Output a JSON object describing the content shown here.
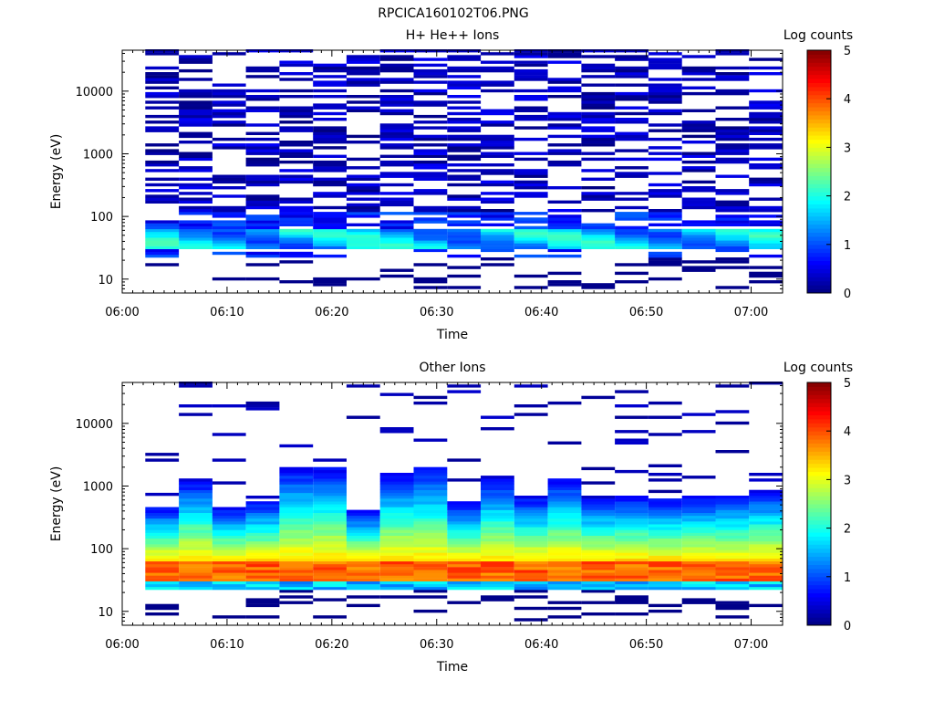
{
  "title": "RPCICA160102T06.PNG",
  "chart_data": [
    {
      "type": "heatmap",
      "title": "H+ He++ Ions",
      "xlabel": "Time",
      "ylabel": "Energy (eV)",
      "x_ticks": [
        "06:00",
        "06:10",
        "06:20",
        "06:30",
        "06:40",
        "06:50",
        "07:00"
      ],
      "x_range_minutes": [
        0,
        63
      ],
      "y_scale": "log",
      "y_ticks": [
        "10",
        "100",
        "1000",
        "10000"
      ],
      "ylim": [
        6,
        45000
      ],
      "colorbar": {
        "label": "Log counts",
        "min": 0,
        "max": 5,
        "ticks": [
          "0",
          "1",
          "2",
          "3",
          "4",
          "5"
        ]
      },
      "time_columns_start_min": [
        2.2,
        5.4,
        8.6,
        11.8,
        15.0,
        18.2,
        21.4,
        24.6,
        27.8,
        31.0,
        34.2,
        37.4,
        40.6,
        43.8,
        47.0,
        50.2,
        53.4,
        56.6,
        59.8
      ],
      "column_width_min": 3.2,
      "energy_bands_eV": {
        "low_gaps": [
          [
            8,
            12
          ],
          [
            12,
            14
          ],
          [
            14,
            18
          ],
          [
            18,
            24
          ]
        ],
        "core_band": [
          30,
          60
        ],
        "core_log_counts": [
          1.8,
          2.0,
          1.6,
          1.2
        ]
      },
      "notes": "sparse single-count pixels (log counts ~0-0.5) fill 100 eV - 40 keV; peak ~1.5-2.2 log counts at 30-60 eV"
    },
    {
      "type": "heatmap",
      "title": "Other Ions",
      "xlabel": "Time",
      "ylabel": "Energy (eV)",
      "x_ticks": [
        "06:00",
        "06:10",
        "06:20",
        "06:30",
        "06:40",
        "06:50",
        "07:00"
      ],
      "x_range_minutes": [
        0,
        63
      ],
      "y_scale": "log",
      "y_ticks": [
        "10",
        "100",
        "1000",
        "10000"
      ],
      "ylim": [
        6,
        45000
      ],
      "colorbar": {
        "label": "Log counts",
        "min": 0,
        "max": 5,
        "ticks": [
          "0",
          "1",
          "2",
          "3",
          "4",
          "5"
        ]
      },
      "time_columns_start_min": [
        2.2,
        5.4,
        8.6,
        11.8,
        15.0,
        18.2,
        21.4,
        24.6,
        27.8,
        31.0,
        34.2,
        37.4,
        40.6,
        43.8,
        47.0,
        50.2,
        53.4,
        56.6,
        59.8
      ],
      "column_width_min": 3.2,
      "upper_cutoff_eV": [
        450,
        1200,
        420,
        560,
        1950,
        1900,
        380,
        1600,
        1850,
        520,
        1200,
        650,
        1200,
        600,
        650,
        600,
        650,
        700,
        850
      ],
      "core_band_eV": [
        30,
        60
      ],
      "core_log_counts": 4.0,
      "notes": "broad 20-1000 eV distribution, red/orange maximum (~3.8-4.2 log counts) at 30-60 eV; sparse high-energy counts to ~30 keV"
    }
  ]
}
